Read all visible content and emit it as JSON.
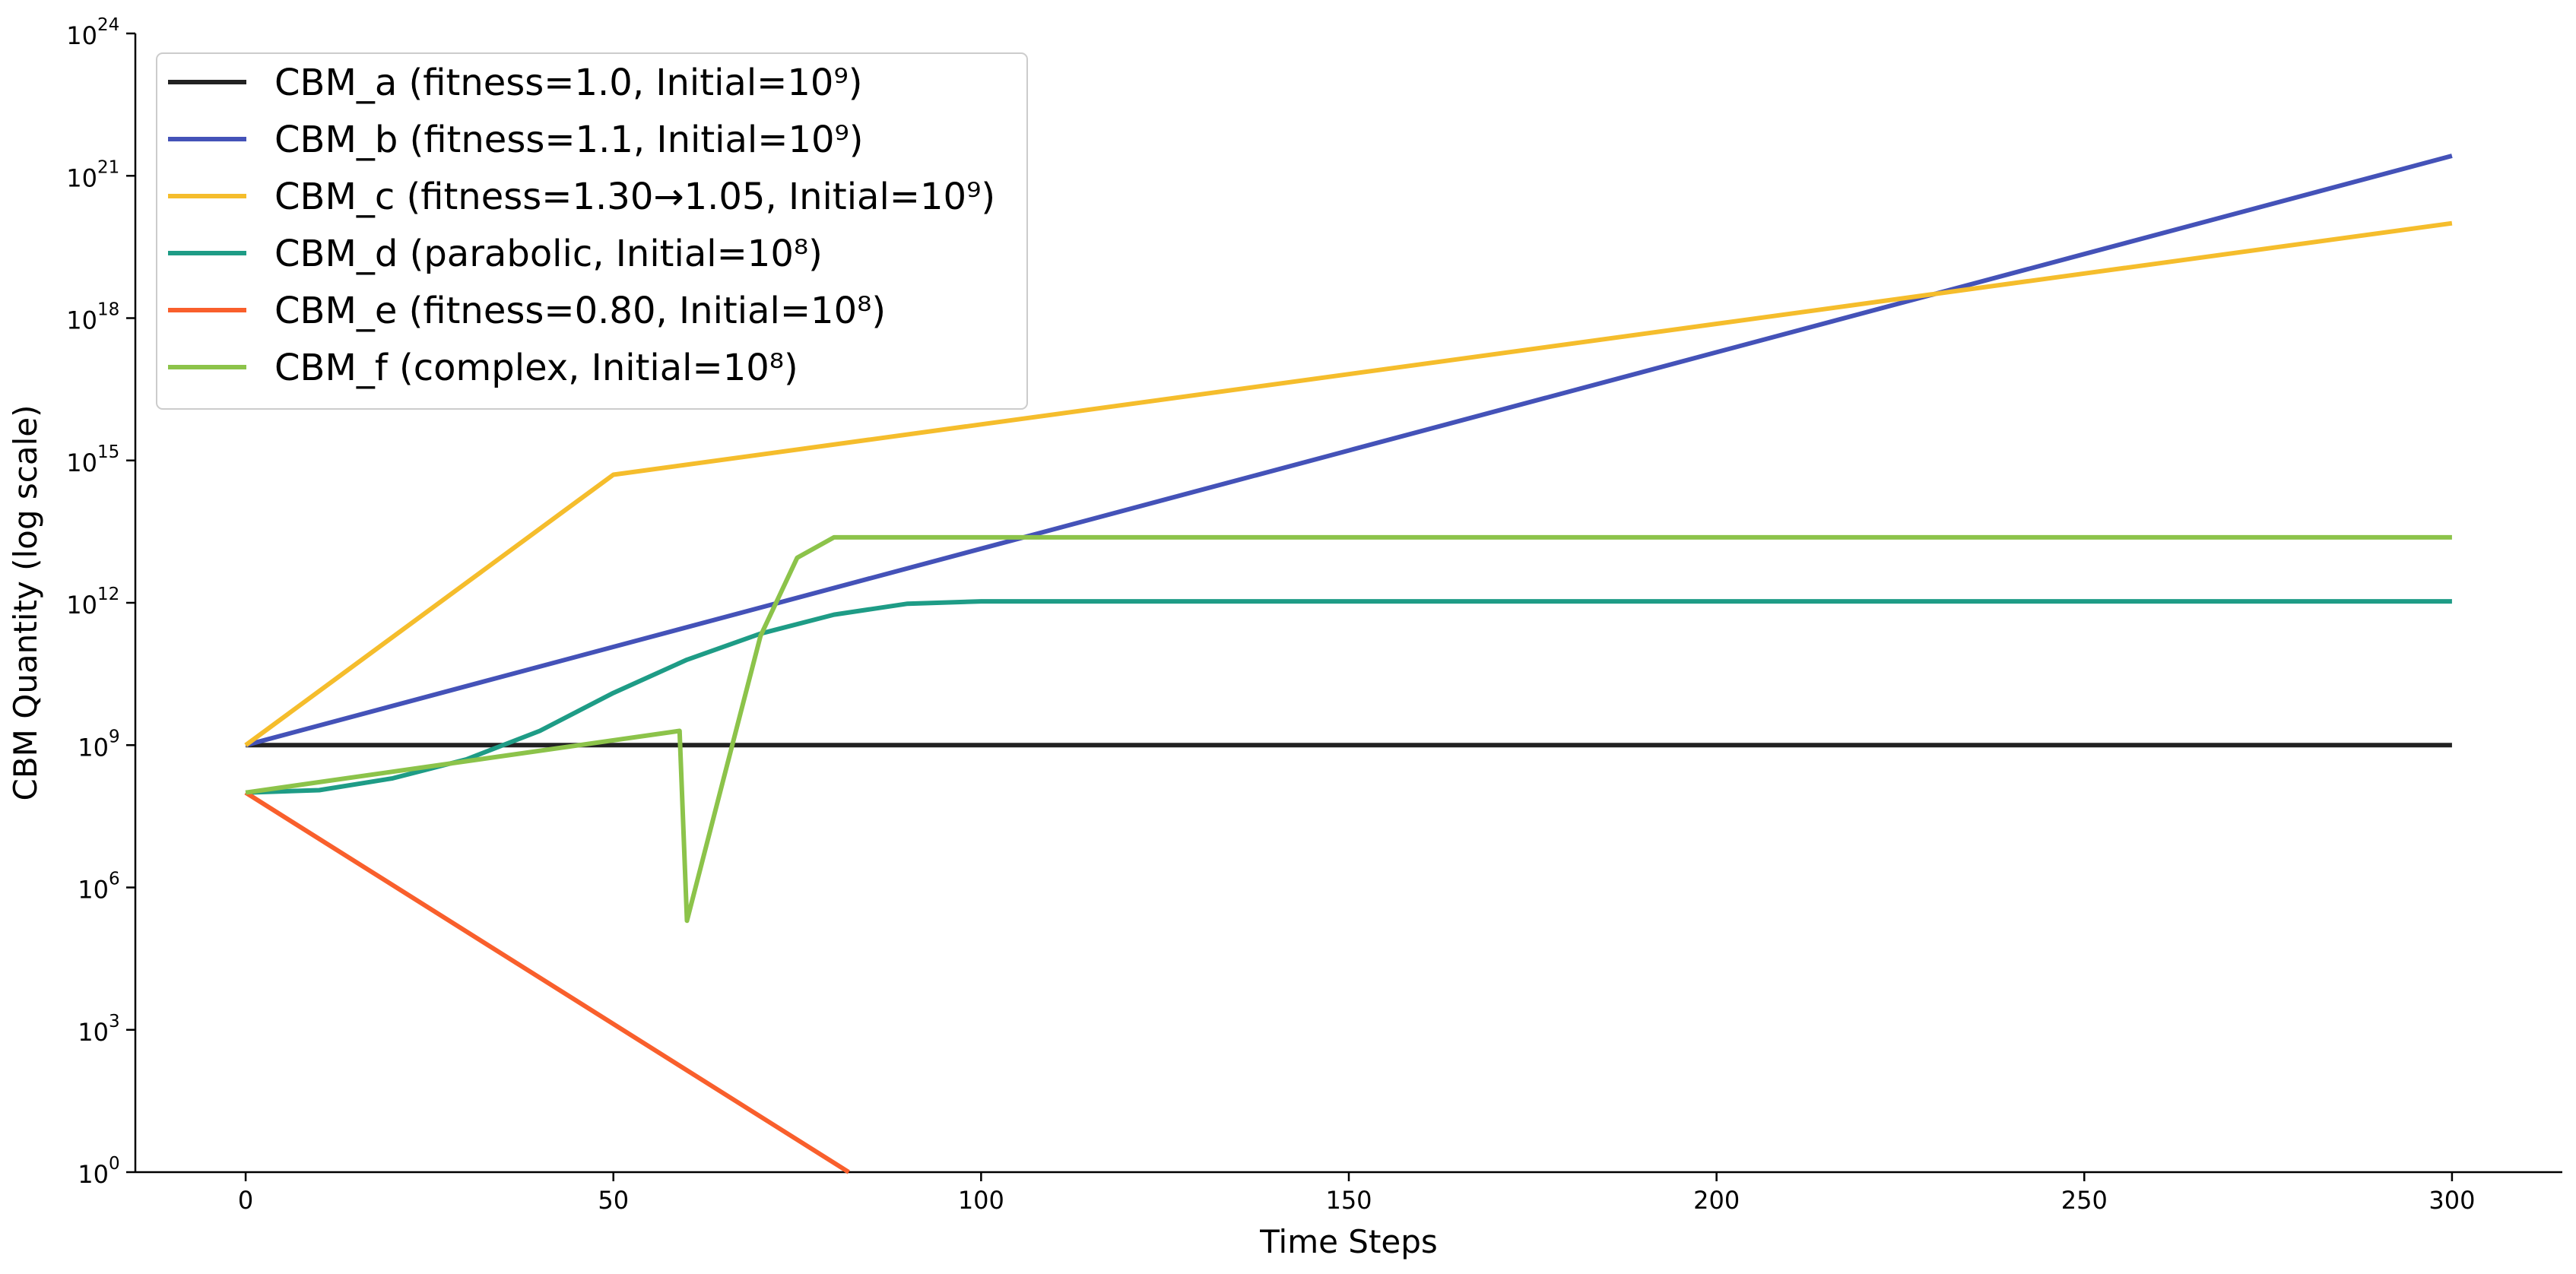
{
  "chart_data": {
    "type": "line",
    "xlabel": "Time Steps",
    "ylabel": "CBM Quantity (log scale)",
    "yscale": "log",
    "xlim": [
      -15,
      315
    ],
    "ylim_exponent": [
      0,
      24
    ],
    "x_ticks": [
      0,
      50,
      100,
      150,
      200,
      250,
      300
    ],
    "x_tick_labels": [
      "0",
      "50",
      "100",
      "150",
      "200",
      "250",
      "300"
    ],
    "y_ticks_exponent": [
      0,
      3,
      6,
      9,
      12,
      15,
      18,
      21,
      24
    ],
    "y_tick_base": "10",
    "y_tick_exponents": [
      "0",
      "3",
      "6",
      "9",
      "12",
      "15",
      "18",
      "21",
      "24"
    ],
    "grid": false,
    "legend_position": "top-left",
    "series": [
      {
        "name": "CBM_a (fitness=1.0, Initial=10⁹)",
        "color": "#222222",
        "points_log10": [
          [
            0,
            9.0
          ],
          [
            300,
            9.0
          ]
        ]
      },
      {
        "name": "CBM_b (fitness=1.1, Initial=10⁹)",
        "color": "#4452b8",
        "points_log10": [
          [
            0,
            9.0
          ],
          [
            50,
            11.07
          ],
          [
            100,
            13.14
          ],
          [
            150,
            15.21
          ],
          [
            200,
            17.28
          ],
          [
            250,
            19.35
          ],
          [
            300,
            21.42
          ]
        ]
      },
      {
        "name": "CBM_c (fitness=1.30→1.05, Initial=10⁹)",
        "color": "#f5bd2c",
        "points_log10": [
          [
            0,
            9.0
          ],
          [
            50,
            14.7
          ],
          [
            100,
            15.76
          ],
          [
            150,
            16.82
          ],
          [
            200,
            17.88
          ],
          [
            250,
            18.94
          ],
          [
            300,
            20.0
          ]
        ]
      },
      {
        "name": "CBM_d (parabolic, Initial=10⁸)",
        "color": "#1e9c86",
        "points_log10": [
          [
            0,
            8.0
          ],
          [
            10,
            8.05
          ],
          [
            20,
            8.3
          ],
          [
            30,
            8.7
          ],
          [
            40,
            9.3
          ],
          [
            50,
            10.1
          ],
          [
            60,
            10.8
          ],
          [
            70,
            11.35
          ],
          [
            80,
            11.75
          ],
          [
            90,
            11.98
          ],
          [
            100,
            12.03
          ],
          [
            150,
            12.03
          ],
          [
            200,
            12.03
          ],
          [
            250,
            12.03
          ],
          [
            300,
            12.03
          ]
        ]
      },
      {
        "name": "CBM_e (fitness=0.80, Initial=10⁸)",
        "color": "#f95f2c",
        "points_log10": [
          [
            0,
            8.0
          ],
          [
            82,
            0.0
          ]
        ]
      },
      {
        "name": "CBM_f (complex, Initial=10⁸)",
        "color": "#8cc34a",
        "points_log10": [
          [
            0,
            8.0
          ],
          [
            59,
            9.3
          ],
          [
            60,
            5.3
          ],
          [
            65,
            8.3
          ],
          [
            70,
            11.3
          ],
          [
            75,
            12.95
          ],
          [
            80,
            13.38
          ],
          [
            150,
            13.38
          ],
          [
            200,
            13.38
          ],
          [
            250,
            13.38
          ],
          [
            300,
            13.38
          ]
        ]
      }
    ]
  }
}
